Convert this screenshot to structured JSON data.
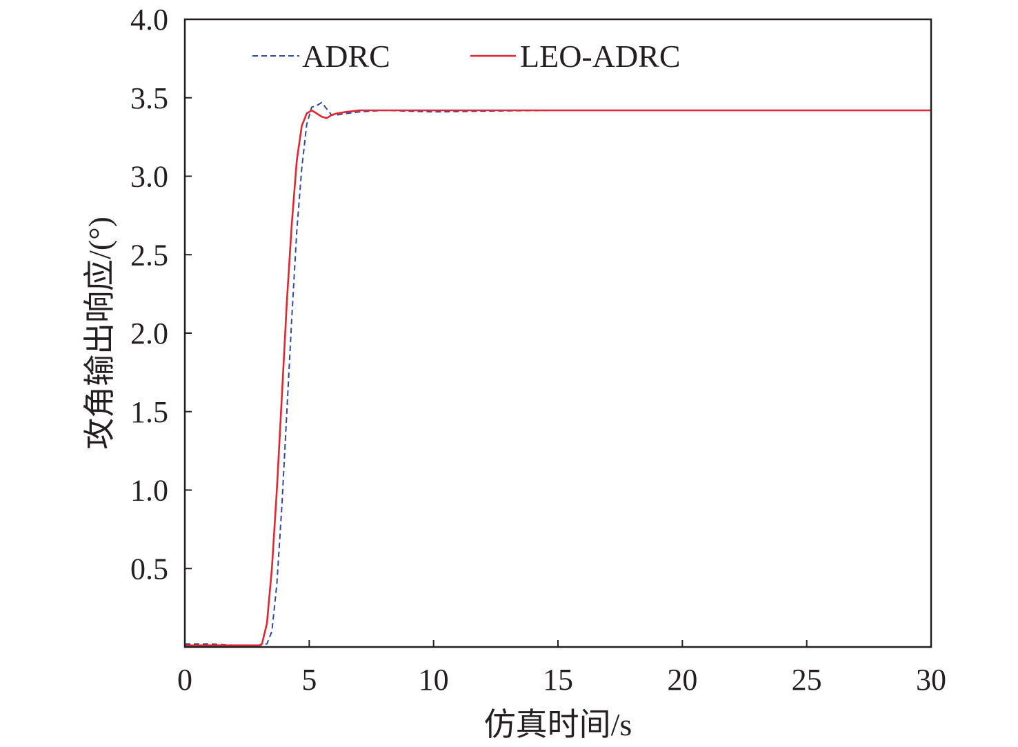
{
  "chart_data": {
    "type": "line",
    "title": "",
    "xlabel": "仿真时间/s",
    "ylabel": "攻角输出响应/(°)",
    "xlim": [
      0,
      30
    ],
    "ylim": [
      0,
      4.0
    ],
    "x_ticks": [
      0,
      5,
      10,
      15,
      20,
      25,
      30
    ],
    "x_tick_labels": [
      "0",
      "5",
      "10",
      "15",
      "20",
      "25",
      "30"
    ],
    "y_ticks": [
      0.5,
      1.0,
      1.5,
      2.0,
      2.5,
      3.0,
      3.5,
      4.0
    ],
    "y_tick_labels": [
      "0.5",
      "1.0",
      "1.5",
      "2.0",
      "2.5",
      "3.0",
      "3.5",
      "4.0"
    ],
    "grid": false,
    "legend_position": "top",
    "series": [
      {
        "name": "ADRC",
        "color": "#2e4a9e",
        "line_style": "dashed",
        "x": [
          0,
          1,
          2,
          3,
          3.3,
          3.5,
          3.7,
          3.9,
          4.1,
          4.3,
          4.5,
          4.7,
          4.9,
          5.1,
          5.3,
          5.5,
          5.7,
          5.9,
          6.1,
          6.5,
          7.0,
          8.0,
          9.0,
          10.0,
          12.0,
          15.0,
          20.0,
          25.0,
          30.0
        ],
        "y": [
          0.02,
          0.02,
          0.01,
          0.01,
          0.02,
          0.1,
          0.4,
          0.9,
          1.5,
          2.1,
          2.65,
          3.05,
          3.33,
          3.44,
          3.45,
          3.47,
          3.43,
          3.39,
          3.39,
          3.4,
          3.41,
          3.42,
          3.415,
          3.41,
          3.415,
          3.42,
          3.42,
          3.42,
          3.42
        ]
      },
      {
        "name": "LEO-ADRC",
        "color": "#e02630",
        "line_style": "solid",
        "x": [
          0,
          1,
          2,
          3,
          3.1,
          3.3,
          3.5,
          3.7,
          3.9,
          4.1,
          4.3,
          4.5,
          4.7,
          4.9,
          5.1,
          5.3,
          5.5,
          5.7,
          5.9,
          6.1,
          6.5,
          7.0,
          8.0,
          10.0,
          15.0,
          20.0,
          25.0,
          30.0
        ],
        "y": [
          0.01,
          0.01,
          0.01,
          0.01,
          0.02,
          0.15,
          0.5,
          1.0,
          1.6,
          2.2,
          2.7,
          3.1,
          3.32,
          3.4,
          3.42,
          3.4,
          3.38,
          3.37,
          3.39,
          3.4,
          3.41,
          3.42,
          3.42,
          3.42,
          3.42,
          3.42,
          3.42,
          3.42
        ]
      }
    ]
  }
}
